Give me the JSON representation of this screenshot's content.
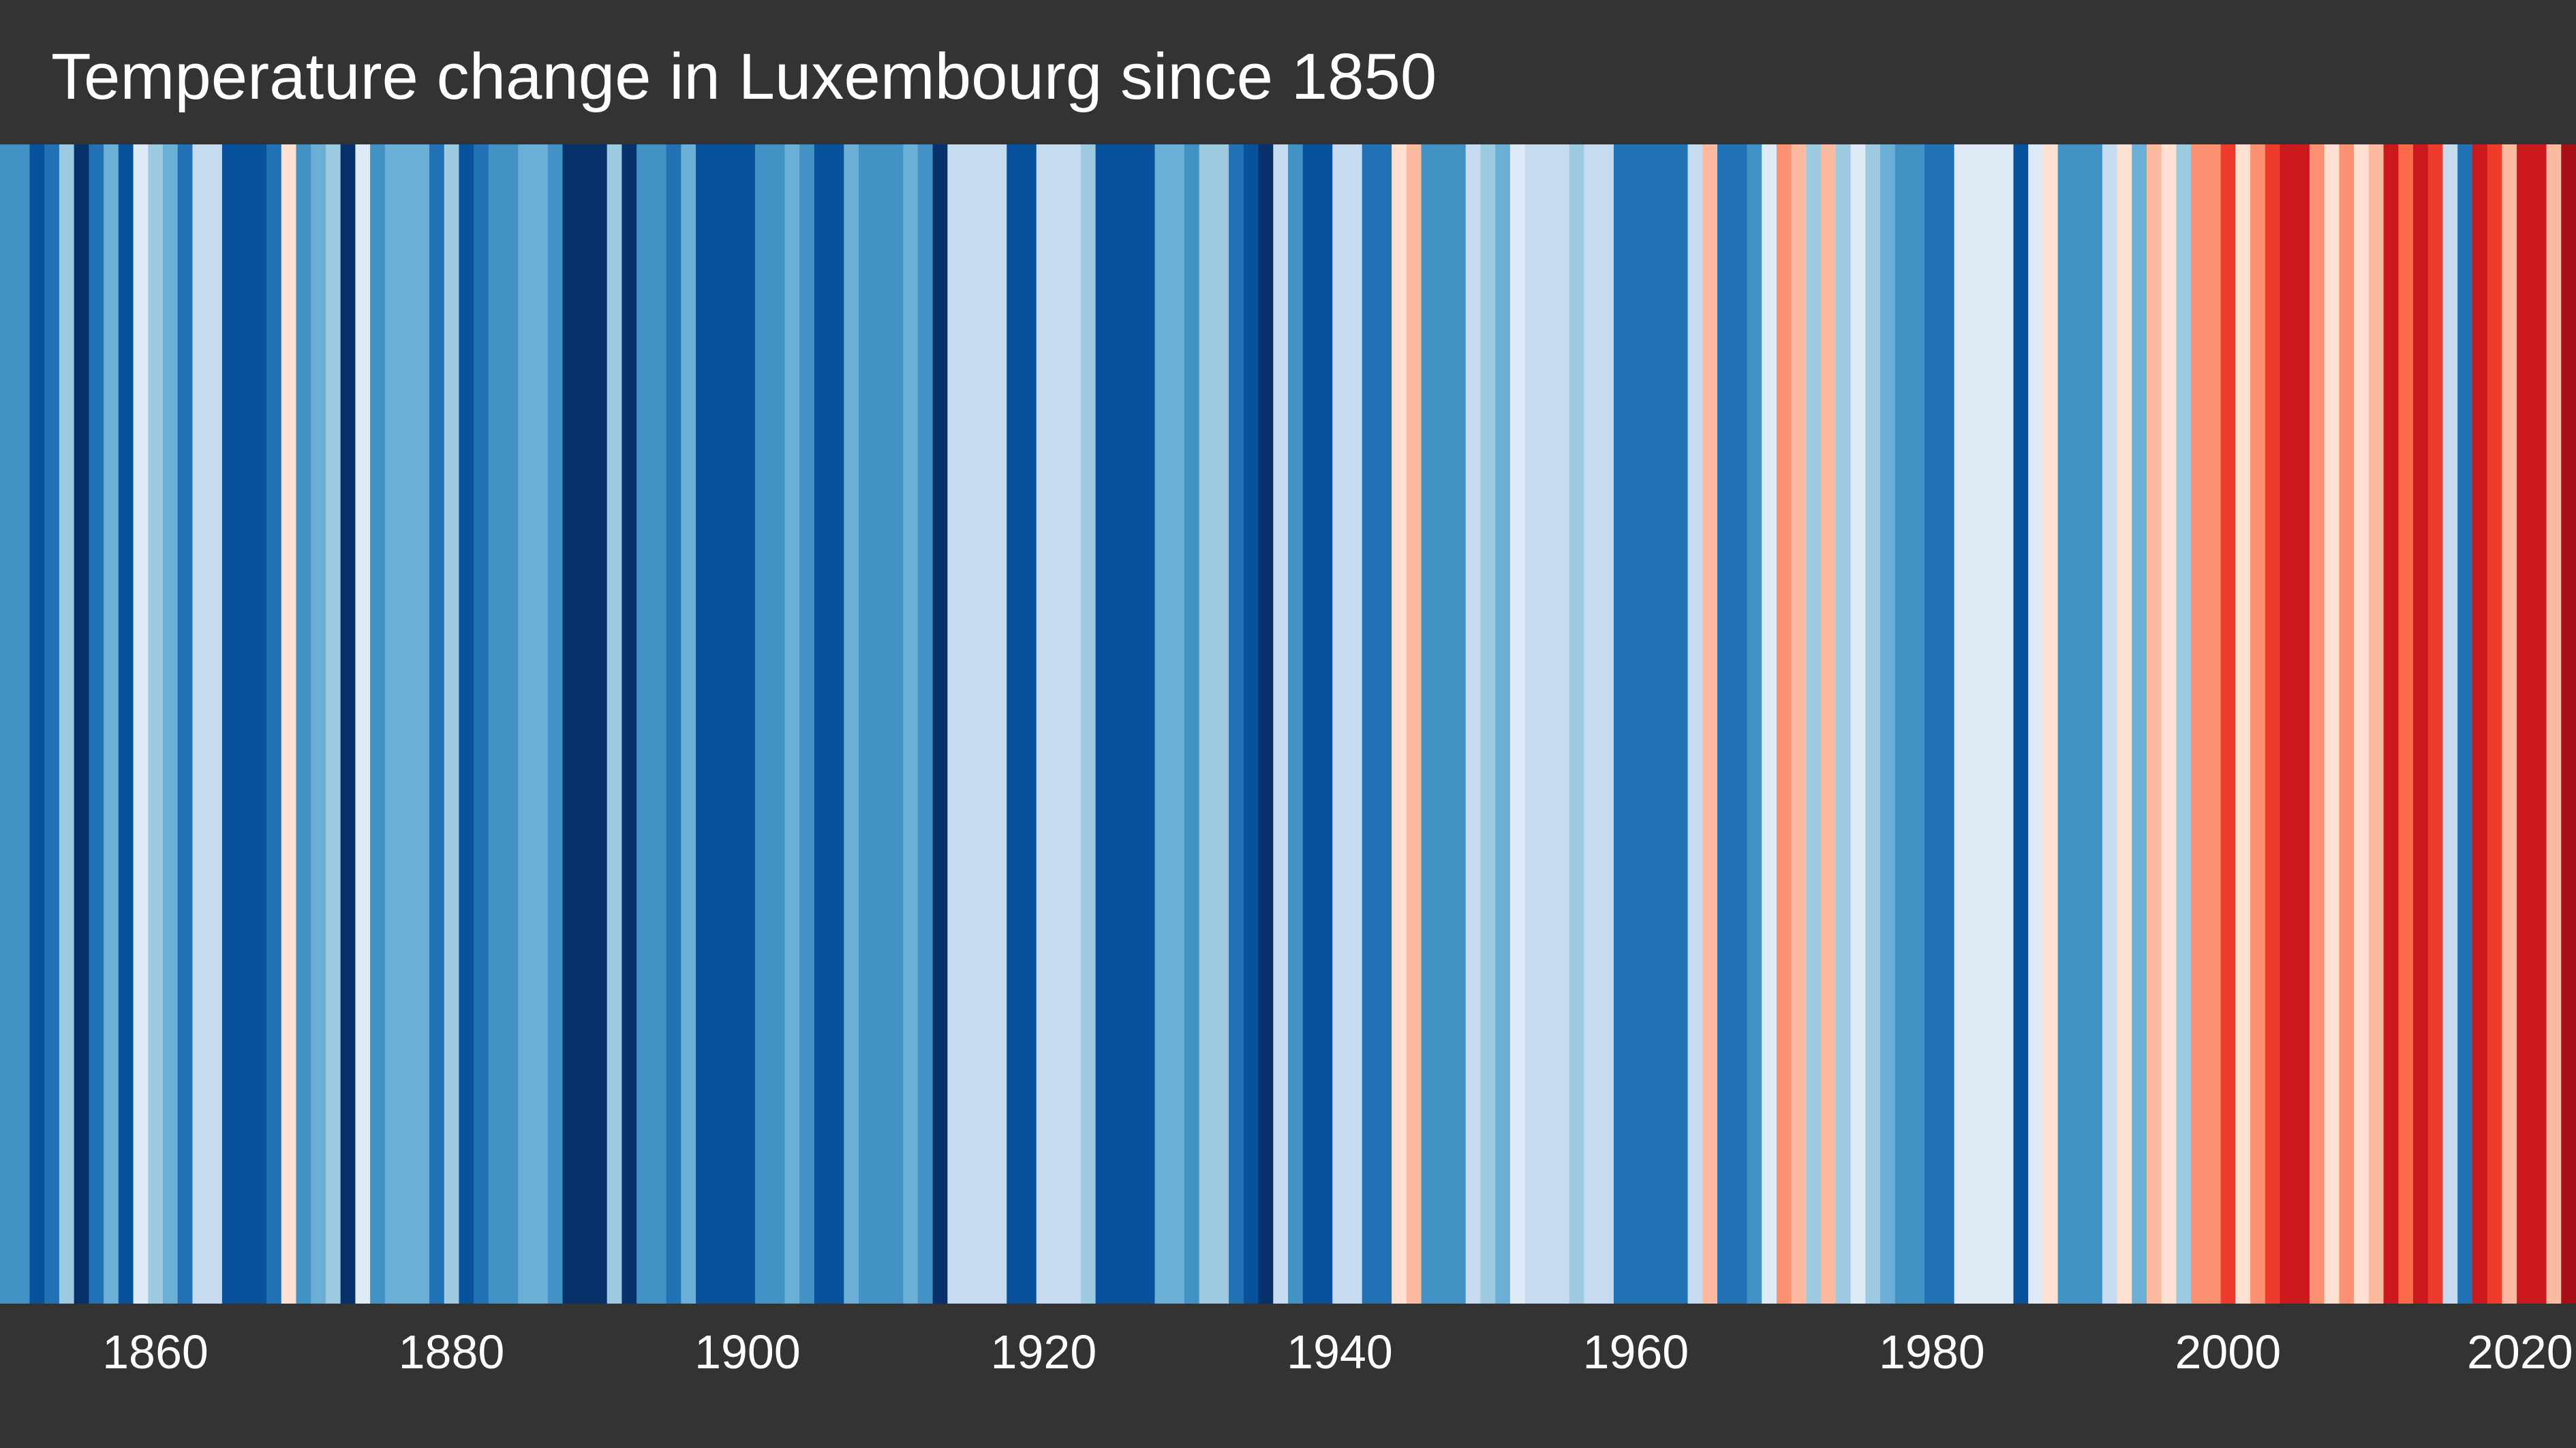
{
  "chart_data": {
    "type": "heatmap",
    "title": "Temperature change in Luxembourg since 1850",
    "xlabel": "",
    "ylabel": "",
    "x_start": 1850,
    "x_end": 2023,
    "xlim": [
      1850,
      2023
    ],
    "x_ticks": [
      1860,
      1880,
      1900,
      1920,
      1940,
      1960,
      1980,
      2000,
      2020
    ],
    "grid": false,
    "legend": "none",
    "series": [
      {
        "values": [
          3,
          3,
          1,
          2,
          5,
          0,
          2,
          4,
          1,
          7,
          5,
          4,
          2,
          6,
          6,
          1,
          1,
          1,
          2,
          8,
          3,
          4,
          5,
          0,
          7,
          3,
          4,
          4,
          4,
          2,
          5,
          1,
          2,
          3,
          3,
          4,
          4,
          3,
          0,
          0,
          0,
          5,
          0,
          3,
          3,
          2,
          4,
          1,
          1,
          1,
          1,
          3,
          3,
          4,
          3,
          1,
          1,
          4,
          3,
          3,
          3,
          4,
          3,
          0,
          6,
          6,
          6,
          6,
          1,
          1,
          6,
          6,
          6,
          5,
          1,
          1,
          1,
          1,
          4,
          4,
          3,
          5,
          5,
          2,
          1,
          0,
          6,
          3,
          1,
          1,
          6,
          6,
          2,
          2,
          8,
          9,
          3,
          3,
          3,
          6,
          5,
          4,
          7,
          6,
          6,
          6,
          5,
          6,
          6,
          2,
          2,
          2,
          2,
          2,
          6,
          9,
          2,
          2,
          3,
          7,
          10,
          9,
          5,
          9,
          5,
          7,
          5,
          4,
          3,
          3,
          2,
          2,
          7,
          7,
          7,
          7,
          1,
          7,
          8,
          3,
          3,
          3,
          6,
          8,
          4,
          9,
          8,
          5,
          10,
          10,
          12,
          8,
          10,
          12,
          13,
          13,
          10,
          8,
          10,
          8,
          9,
          13,
          11,
          13,
          12,
          6,
          2,
          13,
          12,
          9,
          13,
          13,
          9,
          14
        ]
      }
    ],
    "color_scale": [
      "#08306b",
      "#08519c",
      "#2171b5",
      "#4292c6",
      "#6baed6",
      "#9ecae1",
      "#c6dbef",
      "#deebf7",
      "#fee0d2",
      "#fcbba1",
      "#fc9272",
      "#fb6a4a",
      "#ef3b2c",
      "#cb181d",
      "#a50f15",
      "#67000d"
    ]
  }
}
